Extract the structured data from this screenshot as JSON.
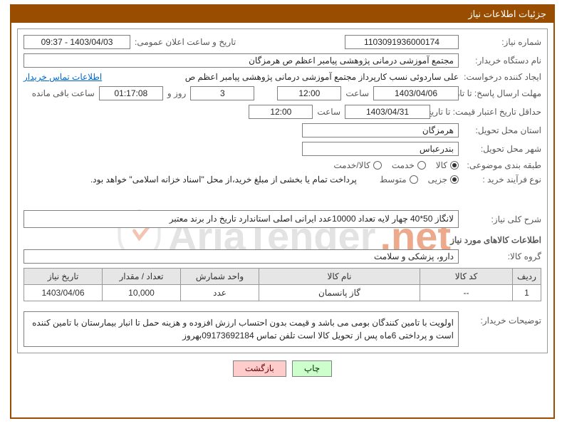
{
  "header": {
    "title": "جزئیات اطلاعات نیاز"
  },
  "labels": {
    "need_no": "شماره نیاز:",
    "announce_dt": "تاریخ و ساعت اعلان عمومی:",
    "buyer": "نام دستگاه خریدار:",
    "requester": "ایجاد کننده درخواست:",
    "deadline": "مهلت ارسال پاسخ: تا تاریخ:",
    "time": "ساعت",
    "days_and": "روز و",
    "remaining": "ساعت باقی مانده",
    "validity": "حداقل تاریخ اعتبار قیمت: تا تاریخ:",
    "province": "استان محل تحویل:",
    "city": "شهر محل تحویل:",
    "category": "طبقه بندی موضوعی:",
    "process": "نوع فرآیند خرید :",
    "contact": "اطلاعات تماس خریدار",
    "need_desc": "شرح کلی نیاز:",
    "goods_info": "اطلاعات کالاهای مورد نیاز",
    "goods_group": "گروه کالا:",
    "buyer_notes": "توضیحات خریدار:",
    "payment_note": "پرداخت تمام یا بخشی از مبلغ خرید،از محل \"اسناد خزانه اسلامی\" خواهد بود."
  },
  "values": {
    "need_no": "1103091936000174",
    "announce_dt": "1403/04/03 - 09:37",
    "buyer": "مجتمع آموزشی درمانی پژوهشی پیامبر اعظم ص  هرمزگان",
    "requester": "علی ساردوئی نسب کارپرداز مجتمع آموزشی درمانی پژوهشی پیامبر اعظم ص",
    "deadline_date": "1403/04/06",
    "deadline_time": "12:00",
    "remaining_days": "3",
    "remaining_time": "01:17:08",
    "validity_date": "1403/04/31",
    "validity_time": "12:00",
    "province": "هرمزگان",
    "city": "بندرعباس",
    "need_desc": "لانگاز 50*40 چهار لایه  تعداد 10000عدد ایرانی اصلی  استاندارد تاریخ  دار برند معتبر",
    "goods_group": "دارو، پزشکی و سلامت",
    "buyer_notes": "اولویت با تامین کنندگان بومی می باشد و قیمت بدون احتساب ارزش افزوده و هزینه حمل تا انبار بیمارستان با تامین کننده است و پرداختی 6ماه پس از تحویل کالا است تلفن تماس 09173692184بهروز"
  },
  "radios": {
    "category": {
      "opts": [
        "کالا",
        "خدمت",
        "کالا/خدمت"
      ],
      "selected": 0
    },
    "process": {
      "opts": [
        "جزیی",
        "متوسط"
      ],
      "selected": 0
    }
  },
  "table": {
    "headers": [
      "ردیف",
      "کد کالا",
      "نام کالا",
      "واحد شمارش",
      "تعداد / مقدار",
      "تاریخ نیاز"
    ],
    "widths": [
      "40px",
      "130px",
      "auto",
      "110px",
      "110px",
      "110px"
    ],
    "rows": [
      [
        "1",
        "--",
        "گاز پانسمان",
        "عدد",
        "10,000",
        "1403/04/06"
      ]
    ]
  },
  "buttons": {
    "print": "چاپ",
    "back": "بازگشت"
  },
  "watermark": {
    "text1": "AriaTender",
    "text2": ".net"
  }
}
